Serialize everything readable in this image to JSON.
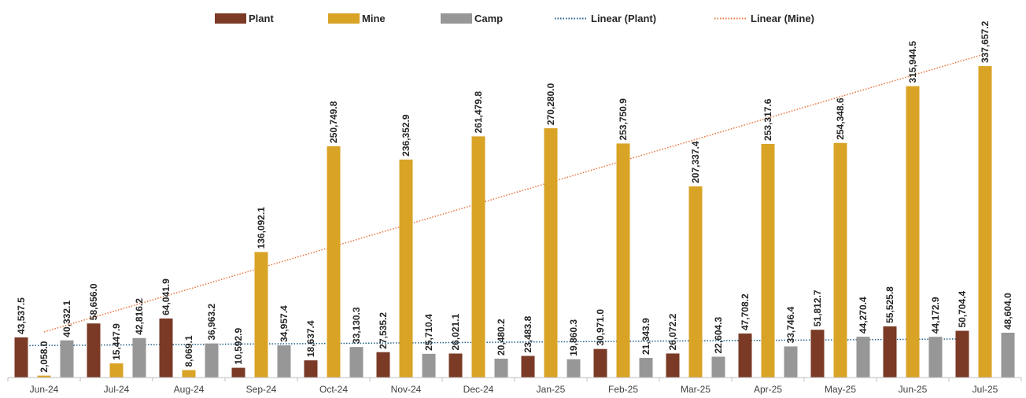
{
  "chart_data": {
    "type": "bar",
    "categories": [
      "Jun-24",
      "Jul-24",
      "Aug-24",
      "Sep-24",
      "Oct-24",
      "Nov-24",
      "Dec-24",
      "Jan-25",
      "Feb-25",
      "Mar-25",
      "Apr-25",
      "May-25",
      "Jun-25",
      "Jul-25"
    ],
    "series": [
      {
        "name": "Plant",
        "color": "#7a3a26",
        "values": [
          43537.5,
          58656.0,
          64041.9,
          10592.9,
          18637.4,
          27535.2,
          26021.1,
          23483.8,
          30971.0,
          26072.2,
          47708.2,
          51812.7,
          55525.8,
          50704.4
        ],
        "labels": [
          "43,537.5",
          "58,656.0",
          "64,041.9",
          "10,592.9",
          "18,637.4",
          "27,535.2",
          "26,021.1",
          "23,483.8",
          "30,971.0",
          "26,072.2",
          "47,708.2",
          "51,812.7",
          "55,525.8",
          "50,704.4"
        ]
      },
      {
        "name": "Mine",
        "color": "#d9a326",
        "values": [
          2058.0,
          15447.9,
          8069.1,
          136092.1,
          250749.8,
          236352.9,
          261479.8,
          270280.0,
          253750.9,
          207337.4,
          253317.6,
          254348.6,
          315944.5,
          337657.2
        ],
        "labels": [
          "2,058.0",
          "15,447.9",
          "8,069.1",
          "136,092.1",
          "250,749.8",
          "236,352.9",
          "261,479.8",
          "270,280.0",
          "253,750.9",
          "207,337.4",
          "253,317.6",
          "254,348.6",
          "315,944.5",
          "337,657.2"
        ]
      },
      {
        "name": "Camp",
        "color": "#979797",
        "values": [
          40332.1,
          42816.2,
          36963.2,
          34957.4,
          33130.3,
          25710.4,
          20480.2,
          19860.3,
          21343.9,
          22604.3,
          33746.4,
          44270.4,
          44172.9,
          48604.0
        ],
        "labels": [
          "40,332.1",
          "42,816.2",
          "36,963.2",
          "34,957.4",
          "33,130.3",
          "25,710.4",
          "20,480.2",
          "19,860.3",
          "21,343.9",
          "22,604.3",
          "33,746.4",
          "44,270.4",
          "44,172.9",
          "48,604.0"
        ]
      }
    ],
    "trendlines": [
      {
        "name": "Linear (Plant)",
        "color": "#1f5f86",
        "style": "dotted",
        "of": "Plant"
      },
      {
        "name": "Linear (Mine)",
        "color": "#e8743b",
        "style": "dotted",
        "of": "Mine"
      }
    ],
    "ylim": [
      0,
      365000
    ],
    "legend_position": "top",
    "grid": false
  }
}
